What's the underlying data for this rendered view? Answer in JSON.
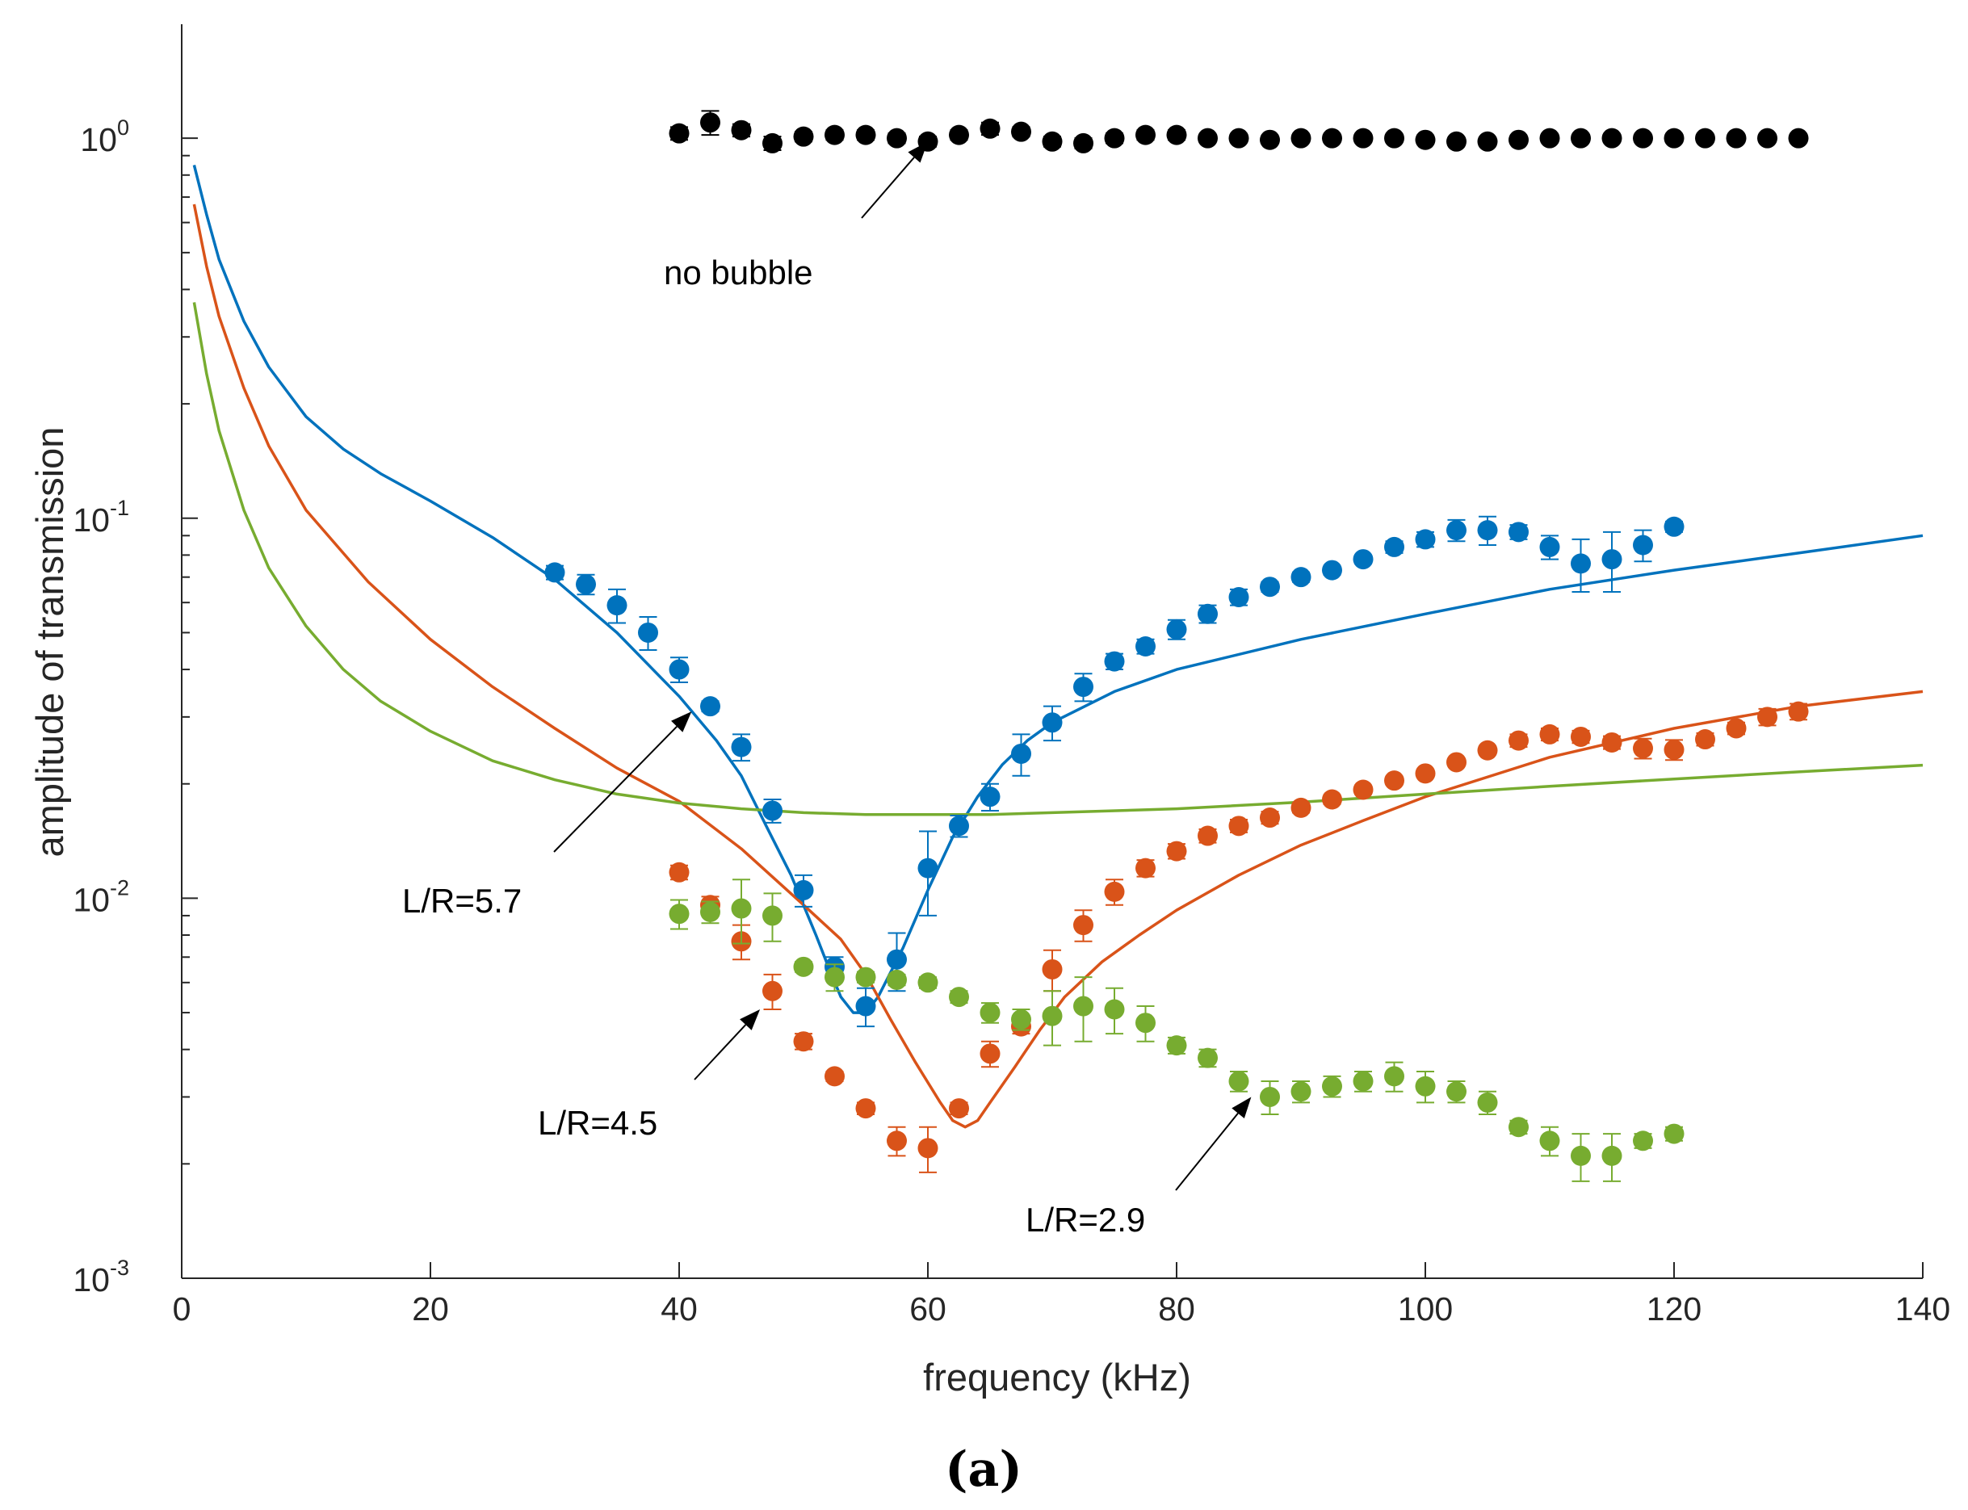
{
  "chart_data": {
    "type": "scatter",
    "xlabel": "frequency (kHz)",
    "ylabel": "amplitude of transmission",
    "caption": "(a)",
    "xlim": [
      0,
      140
    ],
    "ylim_log10": [
      -3,
      0.3
    ],
    "yscale": "log",
    "grid": false,
    "x_ticks": [
      {
        "value": 0,
        "label": "0"
      },
      {
        "value": 20,
        "label": "20"
      },
      {
        "value": 40,
        "label": "40"
      },
      {
        "value": 60,
        "label": "60"
      },
      {
        "value": 80,
        "label": "80"
      },
      {
        "value": 100,
        "label": "100"
      },
      {
        "value": 120,
        "label": "120"
      },
      {
        "value": 140,
        "label": "140"
      }
    ],
    "y_ticks": [
      {
        "log10": 0,
        "base": "10",
        "exp": "0"
      },
      {
        "log10": -1,
        "base": "10",
        "exp": "-1"
      },
      {
        "log10": -2,
        "base": "10",
        "exp": "-2"
      },
      {
        "log10": -3,
        "base": "10",
        "exp": "-3"
      }
    ],
    "series": [
      {
        "name": "no bubble",
        "color": "#000000",
        "points": [
          [
            40,
            1.03,
            0.04
          ],
          [
            42.5,
            1.1,
            0.08
          ],
          [
            45,
            1.05,
            0.04
          ],
          [
            47.5,
            0.97,
            0.04
          ],
          [
            50,
            1.01,
            0.03
          ],
          [
            52.5,
            1.02,
            0.03
          ],
          [
            55,
            1.02,
            0.03
          ],
          [
            57.5,
            1.0,
            0.03
          ],
          [
            60,
            0.98,
            0.03
          ],
          [
            62.5,
            1.02,
            0.03
          ],
          [
            65,
            1.06,
            0.04
          ],
          [
            67.5,
            1.04,
            0.03
          ],
          [
            70,
            0.98,
            0.03
          ],
          [
            72.5,
            0.97,
            0.03
          ],
          [
            75,
            1.0,
            0.03
          ],
          [
            77.5,
            1.02,
            0.03
          ],
          [
            80,
            1.02,
            0.03
          ],
          [
            82.5,
            1.0,
            0.02
          ],
          [
            85,
            1.0,
            0.02
          ],
          [
            87.5,
            0.99,
            0.02
          ],
          [
            90,
            1.0,
            0.02
          ],
          [
            92.5,
            1.0,
            0.02
          ],
          [
            95,
            1.0,
            0.02
          ],
          [
            97.5,
            1.0,
            0.02
          ],
          [
            100,
            0.99,
            0.02
          ],
          [
            102.5,
            0.98,
            0.02
          ],
          [
            105,
            0.98,
            0.02
          ],
          [
            107.5,
            0.99,
            0.02
          ],
          [
            110,
            1.0,
            0.02
          ],
          [
            112.5,
            1.0,
            0.02
          ],
          [
            115,
            1.0,
            0.02
          ],
          [
            117.5,
            1.0,
            0.02
          ],
          [
            120,
            1.0,
            0.02
          ],
          [
            122.5,
            1.0,
            0.02
          ],
          [
            125,
            1.0,
            0.02
          ],
          [
            127.5,
            1.0,
            0.02
          ],
          [
            130,
            1.0,
            0.02
          ]
        ]
      },
      {
        "name": "L/R=5.7",
        "color": "#0072bd",
        "points": [
          [
            30,
            0.072,
            0.003
          ],
          [
            32.5,
            0.067,
            0.004
          ],
          [
            35,
            0.059,
            0.006
          ],
          [
            37.5,
            0.05,
            0.005
          ],
          [
            40,
            0.04,
            0.003
          ],
          [
            42.5,
            0.032,
            0.001
          ],
          [
            45,
            0.025,
            0.002
          ],
          [
            47.5,
            0.017,
            0.0012
          ],
          [
            50,
            0.0105,
            0.001
          ],
          [
            52.5,
            0.0066,
            0.0004
          ],
          [
            55,
            0.0052,
            0.0006
          ],
          [
            57.5,
            0.0069,
            0.0012
          ],
          [
            60,
            0.012,
            0.003
          ],
          [
            62.5,
            0.0155,
            0.001
          ],
          [
            65,
            0.0185,
            0.0015
          ],
          [
            67.5,
            0.024,
            0.003
          ],
          [
            70,
            0.029,
            0.003
          ],
          [
            72.5,
            0.036,
            0.003
          ],
          [
            75,
            0.042,
            0.002
          ],
          [
            77.5,
            0.046,
            0.002
          ],
          [
            80,
            0.051,
            0.003
          ],
          [
            82.5,
            0.056,
            0.003
          ],
          [
            85,
            0.062,
            0.003
          ],
          [
            87.5,
            0.066,
            0.002
          ],
          [
            90,
            0.07,
            0.002
          ],
          [
            92.5,
            0.073,
            0.002
          ],
          [
            95,
            0.078,
            0.002
          ],
          [
            97.5,
            0.084,
            0.003
          ],
          [
            100,
            0.088,
            0.004
          ],
          [
            102.5,
            0.093,
            0.006
          ],
          [
            105,
            0.093,
            0.008
          ],
          [
            107.5,
            0.092,
            0.004
          ],
          [
            110,
            0.084,
            0.006
          ],
          [
            112.5,
            0.076,
            0.012
          ],
          [
            115,
            0.078,
            0.014
          ],
          [
            117.5,
            0.085,
            0.008
          ],
          [
            120,
            0.095,
            0.003
          ]
        ]
      },
      {
        "name": "L/R=4.5",
        "color": "#d95319",
        "points": [
          [
            40,
            0.0117,
            0.0005
          ],
          [
            42.5,
            0.0096,
            0.0005
          ],
          [
            45,
            0.0077,
            0.0008
          ],
          [
            47.5,
            0.0057,
            0.0006
          ],
          [
            50,
            0.0042,
            0.0002
          ],
          [
            52.5,
            0.0034,
            0.0001
          ],
          [
            55,
            0.0028,
            0.0001
          ],
          [
            57.5,
            0.0023,
            0.0002
          ],
          [
            60,
            0.0022,
            0.0003
          ],
          [
            62.5,
            0.0028,
            0.0001
          ],
          [
            65,
            0.0039,
            0.0003
          ],
          [
            67.5,
            0.0046,
            0.0002
          ],
          [
            70,
            0.0065,
            0.0008
          ],
          [
            72.5,
            0.0085,
            0.0008
          ],
          [
            75,
            0.0104,
            0.0008
          ],
          [
            77.5,
            0.012,
            0.0006
          ],
          [
            80,
            0.0133,
            0.0006
          ],
          [
            82.5,
            0.0146,
            0.0006
          ],
          [
            85,
            0.0155,
            0.0006
          ],
          [
            87.5,
            0.0163,
            0.0006
          ],
          [
            90,
            0.0173,
            0.0005
          ],
          [
            92.5,
            0.0182,
            0.0005
          ],
          [
            95,
            0.0193,
            0.0005
          ],
          [
            97.5,
            0.0204,
            0.0005
          ],
          [
            100,
            0.0213,
            0.0005
          ],
          [
            102.5,
            0.0228,
            0.0005
          ],
          [
            105,
            0.0245,
            0.0006
          ],
          [
            107.5,
            0.026,
            0.001
          ],
          [
            110,
            0.027,
            0.001
          ],
          [
            112.5,
            0.0266,
            0.001
          ],
          [
            115,
            0.0257,
            0.001
          ],
          [
            117.5,
            0.0248,
            0.0015
          ],
          [
            120,
            0.0246,
            0.0015
          ],
          [
            122.5,
            0.0262,
            0.001
          ],
          [
            125,
            0.028,
            0.001
          ],
          [
            127.5,
            0.03,
            0.0015
          ],
          [
            130,
            0.031,
            0.0015
          ]
        ]
      },
      {
        "name": "L/R=2.9",
        "color": "#77ac30",
        "points": [
          [
            40,
            0.0091,
            0.0008
          ],
          [
            42.5,
            0.0092,
            0.0006
          ],
          [
            45,
            0.0094,
            0.0018
          ],
          [
            47.5,
            0.009,
            0.0013
          ],
          [
            50,
            0.0066,
            0.0002
          ],
          [
            52.5,
            0.0062,
            0.0005
          ],
          [
            55,
            0.0062,
            0.0002
          ],
          [
            57.5,
            0.0061,
            0.0002
          ],
          [
            60,
            0.006,
            0.0002
          ],
          [
            62.5,
            0.0055,
            0.0002
          ],
          [
            65,
            0.005,
            0.0003
          ],
          [
            67.5,
            0.0048,
            0.0003
          ],
          [
            70,
            0.0049,
            0.0008
          ],
          [
            72.5,
            0.0052,
            0.001
          ],
          [
            75,
            0.0051,
            0.0007
          ],
          [
            77.5,
            0.0047,
            0.0005
          ],
          [
            80,
            0.0041,
            0.0002
          ],
          [
            82.5,
            0.0038,
            0.0002
          ],
          [
            85,
            0.0033,
            0.0002
          ],
          [
            87.5,
            0.003,
            0.0003
          ],
          [
            90,
            0.0031,
            0.0002
          ],
          [
            92.5,
            0.0032,
            0.0002
          ],
          [
            95,
            0.0033,
            0.0002
          ],
          [
            97.5,
            0.0034,
            0.0003
          ],
          [
            100,
            0.0032,
            0.0003
          ],
          [
            102.5,
            0.0031,
            0.0002
          ],
          [
            105,
            0.0029,
            0.0002
          ],
          [
            107.5,
            0.0025,
            0.0001
          ],
          [
            110,
            0.0023,
            0.0002
          ],
          [
            112.5,
            0.0021,
            0.0003
          ],
          [
            115,
            0.0021,
            0.0003
          ],
          [
            117.5,
            0.0023,
            0.0001
          ],
          [
            120,
            0.0024,
            0.0001
          ]
        ]
      }
    ],
    "curves": [
      {
        "name": "L/R=5.7 model",
        "color": "#0072bd",
        "points": [
          [
            1,
            0.85
          ],
          [
            2,
            0.63
          ],
          [
            3,
            0.48
          ],
          [
            5,
            0.33
          ],
          [
            7,
            0.25
          ],
          [
            10,
            0.185
          ],
          [
            13,
            0.152
          ],
          [
            16,
            0.131
          ],
          [
            20,
            0.111
          ],
          [
            25,
            0.089
          ],
          [
            30,
            0.069
          ],
          [
            35,
            0.05
          ],
          [
            40,
            0.034
          ],
          [
            43,
            0.026
          ],
          [
            45,
            0.021
          ],
          [
            47,
            0.0155
          ],
          [
            49,
            0.0115
          ],
          [
            51,
            0.008
          ],
          [
            52,
            0.0066
          ],
          [
            53,
            0.0055
          ],
          [
            54,
            0.005
          ],
          [
            55,
            0.005
          ],
          [
            56,
            0.0055
          ],
          [
            58,
            0.0074
          ],
          [
            60,
            0.0105
          ],
          [
            62,
            0.0145
          ],
          [
            64,
            0.0185
          ],
          [
            66,
            0.0225
          ],
          [
            68,
            0.026
          ],
          [
            70,
            0.029
          ],
          [
            75,
            0.035
          ],
          [
            80,
            0.04
          ],
          [
            90,
            0.048
          ],
          [
            100,
            0.056
          ],
          [
            110,
            0.065
          ],
          [
            120,
            0.073
          ],
          [
            130,
            0.081
          ],
          [
            140,
            0.09
          ]
        ]
      },
      {
        "name": "L/R=4.5 model",
        "color": "#d95319",
        "points": [
          [
            1,
            0.67
          ],
          [
            2,
            0.46
          ],
          [
            3,
            0.34
          ],
          [
            5,
            0.22
          ],
          [
            7,
            0.155
          ],
          [
            10,
            0.105
          ],
          [
            15,
            0.068
          ],
          [
            20,
            0.048
          ],
          [
            25,
            0.036
          ],
          [
            30,
            0.028
          ],
          [
            35,
            0.022
          ],
          [
            40,
            0.018
          ],
          [
            45,
            0.0135
          ],
          [
            50,
            0.0096
          ],
          [
            53,
            0.0078
          ],
          [
            55,
            0.0063
          ],
          [
            57,
            0.0048
          ],
          [
            59,
            0.0037
          ],
          [
            61,
            0.0029
          ],
          [
            62,
            0.0026
          ],
          [
            63,
            0.0025
          ],
          [
            64,
            0.0026
          ],
          [
            65,
            0.0029
          ],
          [
            67,
            0.0036
          ],
          [
            69,
            0.0045
          ],
          [
            71,
            0.0055
          ],
          [
            74,
            0.0068
          ],
          [
            77,
            0.008
          ],
          [
            80,
            0.0093
          ],
          [
            85,
            0.0115
          ],
          [
            90,
            0.0138
          ],
          [
            95,
            0.016
          ],
          [
            100,
            0.0185
          ],
          [
            110,
            0.0235
          ],
          [
            120,
            0.028
          ],
          [
            130,
            0.032
          ],
          [
            140,
            0.035
          ]
        ]
      },
      {
        "name": "L/R=2.9 model",
        "color": "#77ac30",
        "points": [
          [
            1,
            0.37
          ],
          [
            2,
            0.24
          ],
          [
            3,
            0.17
          ],
          [
            5,
            0.105
          ],
          [
            7,
            0.074
          ],
          [
            10,
            0.052
          ],
          [
            13,
            0.04
          ],
          [
            16,
            0.033
          ],
          [
            20,
            0.0275
          ],
          [
            25,
            0.023
          ],
          [
            30,
            0.0205
          ],
          [
            35,
            0.0188
          ],
          [
            40,
            0.0178
          ],
          [
            45,
            0.0172
          ],
          [
            50,
            0.0168
          ],
          [
            55,
            0.0166
          ],
          [
            60,
            0.0166
          ],
          [
            65,
            0.0166
          ],
          [
            70,
            0.0168
          ],
          [
            80,
            0.0172
          ],
          [
            90,
            0.0179
          ],
          [
            100,
            0.0188
          ],
          [
            110,
            0.0197
          ],
          [
            120,
            0.0206
          ],
          [
            130,
            0.0215
          ],
          [
            140,
            0.0224
          ]
        ]
      }
    ],
    "annotations": [
      {
        "text": "no bubble",
        "tip": [
          60,
          0.98
        ]
      },
      {
        "text": "L/R=5.7",
        "tip": [
          41,
          0.031
        ]
      },
      {
        "text": "L/R=4.5",
        "tip": [
          46.5,
          0.0051
        ]
      },
      {
        "text": "L/R=2.9",
        "tip": [
          86,
          0.003
        ]
      }
    ]
  }
}
